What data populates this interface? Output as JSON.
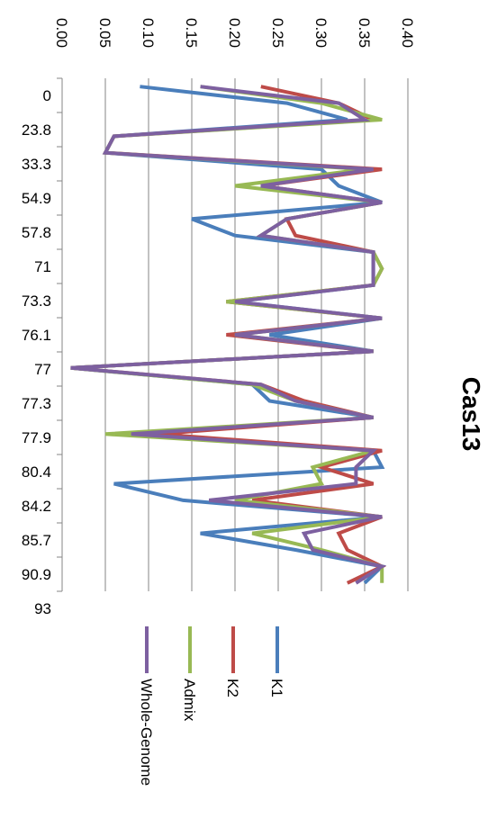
{
  "chart_data": {
    "type": "line",
    "title": "Cas13",
    "x": [
      "0",
      "",
      "23.8",
      "",
      "33.3",
      "",
      "54.9",
      "",
      "57.8",
      "",
      "71",
      "",
      "73.3",
      "",
      "76.1",
      "",
      "77",
      "",
      "77.3",
      "",
      "77.9",
      "",
      "80.4",
      "",
      "84.2",
      "",
      "85.7",
      "",
      "90.9",
      "",
      "93"
    ],
    "x_tick_labels": [
      "0",
      "23.8",
      "33.3",
      "54.9",
      "57.8",
      "71",
      "73.3",
      "76.1",
      "77",
      "77.3",
      "77.9",
      "80.4",
      "84.2",
      "85.7",
      "90.9",
      "93"
    ],
    "ylim": [
      0,
      0.4
    ],
    "y_ticks": [
      "0.00",
      "0.05",
      "0.10",
      "0.15",
      "0.20",
      "0.25",
      "0.30",
      "0.35",
      "0.40"
    ],
    "grid": true,
    "legend_position": "bottom",
    "colors": {
      "K1": "#4a7ebb",
      "K2": "#be4b48",
      "Admix": "#98b954",
      "Whole-Genome": "#7d60a0"
    },
    "series": [
      {
        "name": "K1",
        "values": [
          0.09,
          0.26,
          0.33,
          0.06,
          0.05,
          0.3,
          0.32,
          0.37,
          0.15,
          0.2,
          0.36,
          0.36,
          0.36,
          0.2,
          0.37,
          0.24,
          0.36,
          0.01,
          0.22,
          0.24,
          0.36,
          0.08,
          0.36,
          0.37,
          0.06,
          0.14,
          0.37,
          0.16,
          0.27,
          0.37,
          0.35
        ]
      },
      {
        "name": "K2",
        "values": [
          0.23,
          0.32,
          0.36,
          0.06,
          0.05,
          0.37,
          0.23,
          0.37,
          0.26,
          0.27,
          0.36,
          0.37,
          0.36,
          0.19,
          0.37,
          0.19,
          0.36,
          0.01,
          0.23,
          0.28,
          0.36,
          0.11,
          0.37,
          0.3,
          0.36,
          0.22,
          0.37,
          0.32,
          0.33,
          0.37,
          0.33
        ]
      },
      {
        "name": "Admix",
        "values": [
          0.16,
          0.3,
          0.37,
          0.06,
          0.05,
          0.35,
          0.2,
          0.37,
          0.26,
          0.23,
          0.36,
          0.37,
          0.36,
          0.19,
          0.37,
          0.2,
          0.36,
          0.01,
          0.22,
          0.27,
          0.36,
          0.05,
          0.36,
          0.29,
          0.3,
          0.2,
          0.37,
          0.22,
          0.3,
          0.37,
          0.37
        ]
      },
      {
        "name": "Whole-Genome",
        "values": [
          0.16,
          0.32,
          0.35,
          0.06,
          0.05,
          0.36,
          0.23,
          0.37,
          0.26,
          0.23,
          0.36,
          0.36,
          0.36,
          0.2,
          0.37,
          0.2,
          0.36,
          0.01,
          0.23,
          0.27,
          0.36,
          0.08,
          0.36,
          0.34,
          0.34,
          0.17,
          0.37,
          0.28,
          0.29,
          0.37,
          0.34
        ]
      }
    ]
  }
}
